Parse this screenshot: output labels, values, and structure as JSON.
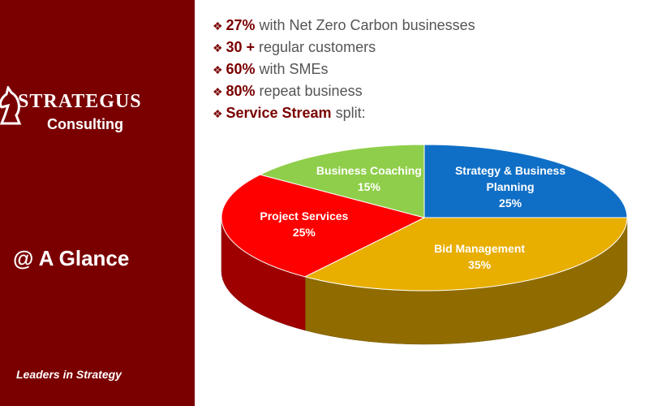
{
  "sidebar": {
    "logo_title": "STRATEGUS",
    "logo_subtitle": "Consulting",
    "heading": "@ A Glance",
    "tagline": "Leaders in Strategy"
  },
  "bullets": [
    {
      "highlight": "27%",
      "text": "with Net Zero Carbon businesses"
    },
    {
      "highlight": "30 +",
      "text": "regular customers"
    },
    {
      "highlight": "60%",
      "text": "with SMEs"
    },
    {
      "highlight": "80%",
      "text": "repeat business"
    },
    {
      "highlight": "Service Stream",
      "text": "split:"
    }
  ],
  "chart_data": {
    "type": "pie",
    "categories": [
      "Strategy & Business Planning",
      "Bid Management",
      "Project Services",
      "Business Coaching"
    ],
    "values": [
      25,
      35,
      25,
      15
    ],
    "value_labels": [
      "25%",
      "35%",
      "25%",
      "15%"
    ],
    "colors": [
      "#0f6fc6",
      "#e8ae00",
      "#ff0000",
      "#8fce4a"
    ]
  }
}
